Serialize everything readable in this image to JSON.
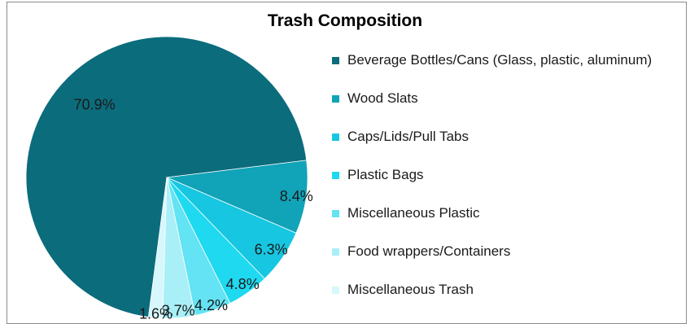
{
  "chart_data": {
    "type": "pie",
    "title": "Trash Composition",
    "legend_position": "right",
    "slices": [
      {
        "label": "Beverage Bottles/Cans (Glass, plastic, aluminum)",
        "value": 70.9,
        "value_label": "70.9%",
        "color": "#0b6c7c"
      },
      {
        "label": "Wood Slats",
        "value": 8.4,
        "value_label": "8.4%",
        "color": "#11a3b8"
      },
      {
        "label": "Caps/Lids/Pull Tabs",
        "value": 6.3,
        "value_label": "6.3%",
        "color": "#17c6e0"
      },
      {
        "label": "Plastic Bags",
        "value": 4.8,
        "value_label": "4.8%",
        "color": "#1ed9ef"
      },
      {
        "label": "Miscellaneous Plastic",
        "value": 4.2,
        "value_label": "4.2%",
        "color": "#63e3f3"
      },
      {
        "label": "Food wrappers/Containers",
        "value": 3.7,
        "value_label": "3.7%",
        "color": "#a9eff8"
      },
      {
        "label": "Miscellaneous Trash",
        "value": 1.6,
        "value_label": "1.6%",
        "color": "#d6f7fb"
      }
    ]
  }
}
